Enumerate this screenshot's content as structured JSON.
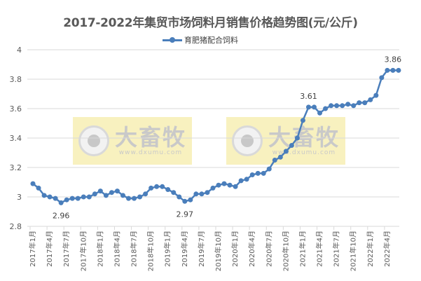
{
  "title": "2017-2022年集贸市场饲料月销售价格趋势图(元/公斤)",
  "legend": {
    "label": "育肥猪配合饲料",
    "color": "#4a7ebb"
  },
  "watermark": {
    "brand": "大畜牧",
    "url": "www.dxumu.com"
  },
  "colors": {
    "line": "#4a7ebb",
    "grid": "#d9d9d9",
    "text": "#595959"
  },
  "chart_data": {
    "type": "line",
    "title": "2017-2022年集贸市场饲料月销售价格趋势图(元/公斤)",
    "xlabel": "",
    "ylabel": "",
    "ylim": [
      2.8,
      4
    ],
    "yticks": [
      2.8,
      3,
      3.2,
      3.4,
      3.6,
      3.8,
      4
    ],
    "ytick_labels": [
      "2.8",
      "3",
      "3.2",
      "3.4",
      "3.6",
      "3.8",
      "4"
    ],
    "grid": true,
    "legend_position": "top",
    "xtick_labels": [
      "2017年1月",
      "2017年4月",
      "2017年7月",
      "2017年10月",
      "2018年1月",
      "2018年4月",
      "2018年7月",
      "2018年10月",
      "2019年1月",
      "2019年4月",
      "2019年7月",
      "2019年10月",
      "2020年1月",
      "2020年4月",
      "2020年7月",
      "2020年10月",
      "2021年1月",
      "2021年4月",
      "2021年7月",
      "2021年10月",
      "2022年1月",
      "2022年4月"
    ],
    "x": [
      "2017-01",
      "2017-02",
      "2017-03",
      "2017-04",
      "2017-05",
      "2017-06",
      "2017-07",
      "2017-08",
      "2017-09",
      "2017-10",
      "2017-11",
      "2017-12",
      "2018-01",
      "2018-02",
      "2018-03",
      "2018-04",
      "2018-05",
      "2018-06",
      "2018-07",
      "2018-08",
      "2018-09",
      "2018-10",
      "2018-11",
      "2018-12",
      "2019-01",
      "2019-02",
      "2019-03",
      "2019-04",
      "2019-05",
      "2019-06",
      "2019-07",
      "2019-08",
      "2019-09",
      "2019-10",
      "2019-11",
      "2019-12",
      "2020-01",
      "2020-02",
      "2020-03",
      "2020-04",
      "2020-05",
      "2020-06",
      "2020-07",
      "2020-08",
      "2020-09",
      "2020-10",
      "2020-11",
      "2020-12",
      "2021-01",
      "2021-02",
      "2021-03",
      "2021-04",
      "2021-05",
      "2021-06",
      "2021-07",
      "2021-08",
      "2021-09",
      "2021-10",
      "2021-11",
      "2021-12",
      "2022-01",
      "2022-02",
      "2022-03",
      "2022-04",
      "2022-05",
      "2022-06"
    ],
    "series": [
      {
        "name": "育肥猪配合饲料",
        "values": [
          3.09,
          3.06,
          3.01,
          3.0,
          2.99,
          2.96,
          2.98,
          2.99,
          2.99,
          3.0,
          3.0,
          3.02,
          3.04,
          3.01,
          3.03,
          3.04,
          3.01,
          2.99,
          2.99,
          3.0,
          3.02,
          3.06,
          3.07,
          3.07,
          3.05,
          3.03,
          3.0,
          2.97,
          2.98,
          3.02,
          3.02,
          3.03,
          3.06,
          3.08,
          3.09,
          3.08,
          3.07,
          3.11,
          3.12,
          3.15,
          3.16,
          3.16,
          3.19,
          3.25,
          3.27,
          3.31,
          3.35,
          3.4,
          3.52,
          3.61,
          3.61,
          3.57,
          3.6,
          3.62,
          3.62,
          3.62,
          3.63,
          3.62,
          3.64,
          3.64,
          3.66,
          3.69,
          3.81,
          3.86,
          3.86,
          3.86
        ]
      }
    ],
    "annotations": [
      {
        "x": "2017-06",
        "value": 2.96,
        "label": "2.96",
        "position": "below"
      },
      {
        "x": "2019-04",
        "value": 2.97,
        "label": "2.97",
        "position": "below"
      },
      {
        "x": "2021-02",
        "value": 3.61,
        "label": "3.61",
        "position": "above"
      },
      {
        "x": "2022-05",
        "value": 3.86,
        "label": "3.86",
        "position": "above"
      }
    ]
  }
}
